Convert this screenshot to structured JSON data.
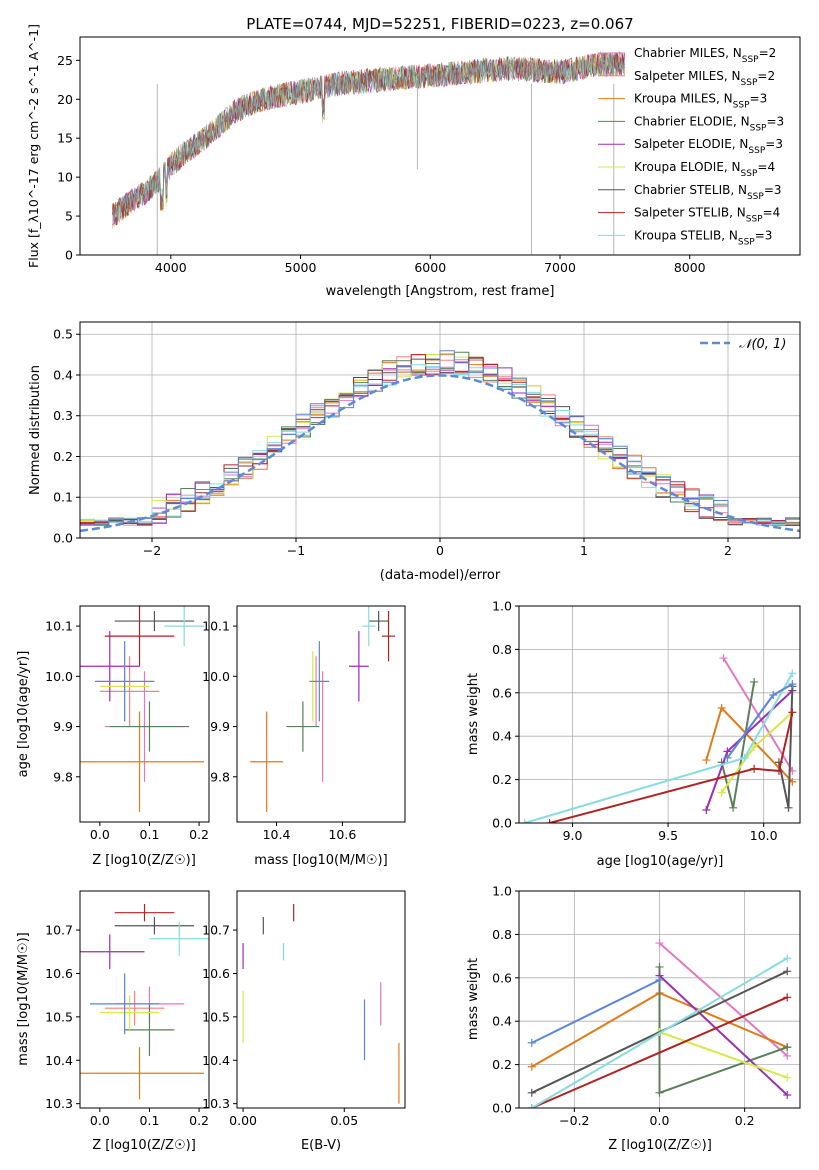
{
  "figure_title": "PLATE=0744, MJD=52251, FIBERID=0223, z=0.067",
  "colors": {
    "Chabrier MILES": "#e377c2",
    "Salpeter MILES": "#ff7f7f",
    "Kroupa MILES": "#e07b1a",
    "Chabrier ELODIE": "#5a7f5a",
    "Salpeter ELODIE": "#9a2fb0",
    "Kroupa ELODIE": "#d8e84a",
    "Chabrier STELIB": "#555555",
    "Salpeter STELIB": "#b22222",
    "Kroupa STELIB": "#86dce0",
    "blue": "#5a86d8",
    "normal_curve": "#5a8ad8"
  },
  "chart_data": [
    {
      "id": "spectrum",
      "type": "line",
      "title": "PLATE=0744, MJD=52251, FIBERID=0223, z=0.067",
      "xlabel": "wavelength [Angstrom, rest frame]",
      "ylabel": "Flux [f_λ10^-17 erg cm^-2 s^-1 A^-1]",
      "xlim": [
        3300,
        8850
      ],
      "ylim": [
        0,
        28
      ],
      "xticks": [
        4000,
        5000,
        6000,
        7000,
        8000
      ],
      "yticks": [
        0,
        5,
        10,
        15,
        20,
        25
      ],
      "legend_position": "top-right",
      "legend": [
        {
          "name": "Chabrier MILES",
          "sub": "SSP",
          "n": "2",
          "color": "#e377c2"
        },
        {
          "name": "Salpeter MILES",
          "sub": "SSP",
          "n": "2",
          "color": "#ff7f7f"
        },
        {
          "name": "Kroupa MILES",
          "sub": "SSP",
          "n": "3",
          "color": "#e07b1a"
        },
        {
          "name": "Chabrier ELODIE",
          "sub": "SSP",
          "n": "3",
          "color": "#5a7f5a"
        },
        {
          "name": "Salpeter ELODIE",
          "sub": "SSP",
          "n": "3",
          "color": "#9a2fb0"
        },
        {
          "name": "Kroupa ELODIE",
          "sub": "SSP",
          "n": "4",
          "color": "#d8e84a"
        },
        {
          "name": "Chabrier STELIB",
          "sub": "SSP",
          "n": "3",
          "color": "#555555"
        },
        {
          "name": "Salpeter STELIB",
          "sub": "SSP",
          "n": "4",
          "color": "#b22222"
        },
        {
          "name": "Kroupa STELIB",
          "sub": "SSP",
          "n": "3",
          "color": "#86dce0"
        }
      ],
      "continuum": {
        "x": [
          3550,
          3700,
          3800,
          3900,
          4000,
          4100,
          4300,
          4500,
          4700,
          5000,
          5300,
          5600,
          6000,
          6300,
          6600,
          7000,
          7300,
          7500
        ],
        "y": [
          5,
          7,
          8,
          9.5,
          11.5,
          13,
          15.5,
          18.5,
          20,
          21,
          22,
          22.5,
          23,
          23.5,
          24,
          23.5,
          24.5,
          24.5
        ]
      }
    },
    {
      "id": "residuals",
      "type": "line",
      "xlabel": "(data-model)/error",
      "ylabel": "Normed distribution",
      "xlim": [
        -2.5,
        2.5
      ],
      "ylim": [
        0,
        0.53
      ],
      "xticks": [
        -2,
        -1,
        0,
        1,
        2
      ],
      "yticks": [
        0.0,
        0.1,
        0.2,
        0.3,
        0.4,
        0.5
      ],
      "grid": true,
      "legend_position": "top-right",
      "normal_label": "𝒩(0, 1)"
    },
    {
      "id": "age-vs-Z",
      "type": "scatter",
      "xlabel": "Z [log10(Z/Z☉)]",
      "ylabel": "age [log10(age/yr)]",
      "xlim": [
        -0.04,
        0.22
      ],
      "ylim": [
        9.71,
        10.14
      ],
      "xticks": [
        0.0,
        0.1,
        0.2
      ],
      "yticks": [
        9.8,
        9.9,
        10.0,
        10.1
      ],
      "points": [
        {
          "x": 0.09,
          "y": 9.9,
          "xerr": 0.08,
          "yerr": 0.11,
          "color": "#e377c2"
        },
        {
          "x": 0.06,
          "y": 9.97,
          "xerr": 0.06,
          "yerr": 0.07,
          "color": "#ff7f7f"
        },
        {
          "x": 0.08,
          "y": 9.83,
          "xerr": 0.13,
          "yerr": 0.1,
          "color": "#e07b1a"
        },
        {
          "x": 0.1,
          "y": 9.9,
          "xerr": 0.08,
          "yerr": 0.05,
          "color": "#5a7f5a"
        },
        {
          "x": 0.02,
          "y": 10.02,
          "xerr": 0.06,
          "yerr": 0.07,
          "color": "#9a2fb0"
        },
        {
          "x": 0.05,
          "y": 9.98,
          "xerr": 0.05,
          "yerr": 0.07,
          "color": "#d8e84a"
        },
        {
          "x": 0.11,
          "y": 10.11,
          "xerr": 0.08,
          "yerr": 0.02,
          "color": "#555555"
        },
        {
          "x": 0.08,
          "y": 10.08,
          "xerr": 0.07,
          "yerr": 0.06,
          "color": "#b22222"
        },
        {
          "x": 0.17,
          "y": 10.1,
          "xerr": 0.04,
          "yerr": 0.04,
          "color": "#86dce0"
        },
        {
          "x": 0.05,
          "y": 9.99,
          "xerr": 0.06,
          "yerr": 0.08,
          "color": "#5a86d8"
        }
      ]
    },
    {
      "id": "age-vs-mass",
      "type": "scatter",
      "xlabel": "mass [log10(M/M☉)]",
      "ylabel": "",
      "xlim": [
        10.28,
        10.79
      ],
      "ylim": [
        9.71,
        10.14
      ],
      "xticks": [
        10.4,
        10.6
      ],
      "yticks": [
        9.8,
        9.9,
        10.0,
        10.1
      ],
      "points": [
        {
          "x": 10.54,
          "y": 9.9,
          "xerr": 0,
          "yerr": 0.11,
          "color": "#e377c2"
        },
        {
          "x": 10.52,
          "y": 9.97,
          "xerr": 0,
          "yerr": 0.07,
          "color": "#ff7f7f"
        },
        {
          "x": 10.37,
          "y": 9.83,
          "xerr": 0.05,
          "yerr": 0.1,
          "color": "#e07b1a"
        },
        {
          "x": 10.48,
          "y": 9.9,
          "xerr": 0.05,
          "yerr": 0.05,
          "color": "#5a7f5a"
        },
        {
          "x": 10.65,
          "y": 10.02,
          "xerr": 0.03,
          "yerr": 0.07,
          "color": "#9a2fb0"
        },
        {
          "x": 10.51,
          "y": 9.98,
          "xerr": 0,
          "yerr": 0.07,
          "color": "#d8e84a"
        },
        {
          "x": 10.71,
          "y": 10.11,
          "xerr": 0.03,
          "yerr": 0.02,
          "color": "#555555"
        },
        {
          "x": 10.74,
          "y": 10.08,
          "xerr": 0.02,
          "yerr": 0.05,
          "color": "#b22222"
        },
        {
          "x": 10.68,
          "y": 10.1,
          "xerr": 0.02,
          "yerr": 0.04,
          "color": "#86dce0"
        },
        {
          "x": 10.53,
          "y": 9.99,
          "xerr": 0.03,
          "yerr": 0.08,
          "color": "#5a86d8"
        }
      ]
    },
    {
      "id": "weight-vs-age",
      "type": "line",
      "xlabel": "age [log10(age/yr)]",
      "ylabel": "mass weight",
      "xlim": [
        8.72,
        10.19
      ],
      "ylim": [
        0,
        1.0
      ],
      "xticks": [
        9.0,
        9.5,
        10.0
      ],
      "yticks": [
        0.0,
        0.2,
        0.4,
        0.6,
        0.8,
        1.0
      ],
      "grid": true,
      "series": [
        {
          "color": "#e377c2",
          "x": [
            9.79,
            10.15
          ],
          "y": [
            0.76,
            0.24
          ]
        },
        {
          "color": "#e07b1a",
          "x": [
            9.7,
            9.78,
            10.15
          ],
          "y": [
            0.29,
            0.53,
            0.19
          ]
        },
        {
          "color": "#5a7f5a",
          "x": [
            9.78,
            9.84,
            9.95
          ],
          "y": [
            0.28,
            0.07,
            0.65
          ]
        },
        {
          "color": "#9a2fb0",
          "x": [
            9.7,
            9.81,
            10.15
          ],
          "y": [
            0.06,
            0.33,
            0.61
          ]
        },
        {
          "color": "#d8e84a",
          "x": [
            9.78,
            9.95,
            10.15
          ],
          "y": [
            0.14,
            0.35,
            0.51
          ]
        },
        {
          "color": "#555555",
          "x": [
            10.08,
            10.13,
            10.15
          ],
          "y": [
            0.28,
            0.07,
            0.63
          ]
        },
        {
          "color": "#b22222",
          "x": [
            8.88,
            9.95,
            10.08,
            10.15
          ],
          "y": [
            0.0,
            0.25,
            0.24,
            0.51
          ]
        },
        {
          "color": "#86dce0",
          "x": [
            8.75,
            9.9,
            10.15
          ],
          "y": [
            0.0,
            0.3,
            0.69
          ]
        },
        {
          "color": "#5a86d8",
          "x": [
            9.81,
            10.05,
            10.15
          ],
          "y": [
            0.3,
            0.59,
            0.64
          ]
        }
      ]
    },
    {
      "id": "mass-vs-Z",
      "type": "scatter",
      "xlabel": "Z [log10(Z/Z☉)]",
      "ylabel": "mass [log10(M/M☉)]",
      "xlim": [
        -0.04,
        0.22
      ],
      "ylim": [
        10.29,
        10.79
      ],
      "xticks": [
        0.0,
        0.1,
        0.2
      ],
      "yticks": [
        10.3,
        10.4,
        10.5,
        10.6,
        10.7
      ],
      "points": [
        {
          "x": 0.1,
          "y": 10.53,
          "xerr": 0.07,
          "yerr": 0.04,
          "color": "#e377c2"
        },
        {
          "x": 0.07,
          "y": 10.52,
          "xerr": 0.06,
          "yerr": 0.04,
          "color": "#ff7f7f"
        },
        {
          "x": 0.08,
          "y": 10.37,
          "xerr": 0.13,
          "yerr": 0.06,
          "color": "#e07b1a"
        },
        {
          "x": 0.1,
          "y": 10.47,
          "xerr": 0.05,
          "yerr": 0.06,
          "color": "#5a7f5a"
        },
        {
          "x": 0.02,
          "y": 10.65,
          "xerr": 0.07,
          "yerr": 0.04,
          "color": "#9a2fb0"
        },
        {
          "x": 0.06,
          "y": 10.51,
          "xerr": 0.06,
          "yerr": 0.04,
          "color": "#d8e84a"
        },
        {
          "x": 0.11,
          "y": 10.71,
          "xerr": 0.08,
          "yerr": 0.02,
          "color": "#555555"
        },
        {
          "x": 0.09,
          "y": 10.74,
          "xerr": 0.06,
          "yerr": 0.02,
          "color": "#b22222"
        },
        {
          "x": 0.16,
          "y": 10.68,
          "xerr": 0.06,
          "yerr": 0.04,
          "color": "#86dce0"
        },
        {
          "x": 0.05,
          "y": 10.53,
          "xerr": 0.07,
          "yerr": 0.07,
          "color": "#5a86d8"
        }
      ]
    },
    {
      "id": "mass-vs-ebv",
      "type": "scatter",
      "xlabel": "E(B-V)",
      "ylabel": "",
      "xlim": [
        -0.003,
        0.08
      ],
      "ylim": [
        10.29,
        10.79
      ],
      "xticks": [
        0.0,
        0.05
      ],
      "yticks": [
        10.3,
        10.4,
        10.5,
        10.6,
        10.7
      ],
      "points": [
        {
          "x": 0.0,
          "y": 10.64,
          "xerr": 0,
          "yerr": 0.03,
          "color": "#9a2fb0"
        },
        {
          "x": 0.0,
          "y": 10.5,
          "xerr": 0,
          "yerr": 0.06,
          "color": "#d8e84a"
        },
        {
          "x": 0.01,
          "y": 10.71,
          "xerr": 0,
          "yerr": 0.02,
          "color": "#555555"
        },
        {
          "x": 0.02,
          "y": 10.65,
          "xerr": 0,
          "yerr": 0.02,
          "color": "#86dce0"
        },
        {
          "x": 0.025,
          "y": 10.74,
          "xerr": 0,
          "yerr": 0.02,
          "color": "#b22222"
        },
        {
          "x": 0.06,
          "y": 10.47,
          "xerr": 0,
          "yerr": 0.07,
          "color": "#5a86d8"
        },
        {
          "x": 0.068,
          "y": 10.53,
          "xerr": 0,
          "yerr": 0.05,
          "color": "#e377c2"
        },
        {
          "x": 0.077,
          "y": 10.37,
          "xerr": 0,
          "yerr": 0.07,
          "color": "#e07b1a"
        }
      ]
    },
    {
      "id": "weight-vs-Z",
      "type": "line",
      "xlabel": "Z [log10(Z/Z☉)]",
      "ylabel": "mass weight",
      "xlim": [
        -0.33,
        0.33
      ],
      "ylim": [
        0,
        1.0
      ],
      "xticks": [
        -0.2,
        0.0,
        0.2
      ],
      "yticks": [
        0.0,
        0.2,
        0.4,
        0.6,
        0.8,
        1.0
      ],
      "grid": true,
      "series": [
        {
          "color": "#e377c2",
          "x": [
            0.0,
            0.3
          ],
          "y": [
            0.76,
            0.24
          ]
        },
        {
          "color": "#e07b1a",
          "x": [
            -0.3,
            0.0,
            0.3
          ],
          "y": [
            0.19,
            0.53,
            0.28
          ]
        },
        {
          "color": "#5a7f5a",
          "x": [
            0.0,
            0.0,
            0.3
          ],
          "y": [
            0.65,
            0.07,
            0.28
          ]
        },
        {
          "color": "#9a2fb0",
          "x": [
            0.0,
            0.3
          ],
          "y": [
            0.61,
            0.06
          ]
        },
        {
          "color": "#d8e84a",
          "x": [
            0.0,
            0.3
          ],
          "y": [
            0.35,
            0.14
          ]
        },
        {
          "color": "#555555",
          "x": [
            -0.3,
            0.3
          ],
          "y": [
            0.07,
            0.63
          ]
        },
        {
          "color": "#b22222",
          "x": [
            -0.3,
            0.3
          ],
          "y": [
            0.0,
            0.51
          ]
        },
        {
          "color": "#86dce0",
          "x": [
            -0.3,
            0.3
          ],
          "y": [
            0.0,
            0.69
          ]
        },
        {
          "color": "#5a86d8",
          "x": [
            -0.3,
            0.0
          ],
          "y": [
            0.3,
            0.59
          ]
        }
      ]
    }
  ]
}
